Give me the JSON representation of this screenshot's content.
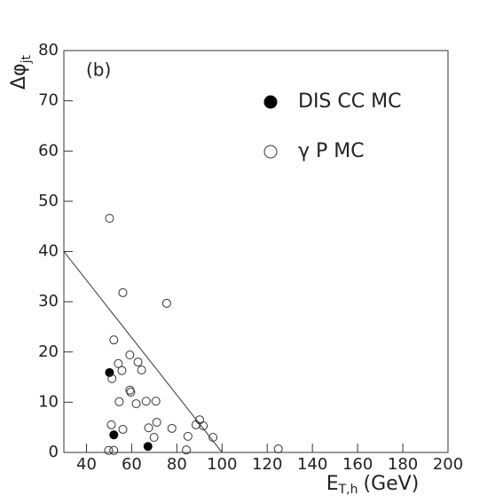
{
  "chart_data": {
    "type": "scatter",
    "panel_label": "(b)",
    "x_label": {
      "main": "E",
      "sub": "T,h",
      "unit": "(GeV)"
    },
    "y_label": {
      "main": "Δφ",
      "sub": "jt"
    },
    "xlim": [
      30,
      200
    ],
    "ylim": [
      0,
      80
    ],
    "xticks": [
      40,
      60,
      80,
      100,
      120,
      140,
      160,
      180,
      200
    ],
    "yticks": [
      0,
      10,
      20,
      30,
      40,
      50,
      60,
      70,
      80
    ],
    "series": [
      {
        "name": "DIS CC MC",
        "color": "#000000",
        "filled": true,
        "x": [
          50.2,
          52.1,
          67.2
        ],
        "values": [
          15.9,
          3.5,
          1.2
        ]
      },
      {
        "name": "γ P MC",
        "color": "#333333",
        "filled": false,
        "x": [
          50.2,
          56.1,
          75.5,
          52.1,
          54.1,
          59.2,
          55.7,
          51.3,
          62.8,
          64.4,
          59.2,
          59.6,
          54.5,
          62.0,
          66.4,
          70.7,
          71.1,
          67.5,
          69.9,
          56.1,
          51.0,
          77.8,
          84.9,
          88.5,
          90.1,
          91.7,
          96.0,
          49.8,
          52.1,
          84.2,
          124.9
        ],
        "values": [
          46.6,
          31.8,
          29.7,
          22.4,
          17.7,
          19.4,
          16.3,
          14.7,
          18.0,
          16.4,
          12.4,
          12.0,
          10.1,
          9.7,
          10.2,
          10.2,
          6.0,
          4.9,
          3.0,
          4.6,
          5.5,
          4.8,
          3.2,
          5.5,
          6.5,
          5.3,
          3.0,
          0.4,
          0.4,
          0.5,
          0.7
        ]
      }
    ],
    "lines": [
      {
        "x": [
          30,
          100
        ],
        "values": [
          40,
          0
        ]
      }
    ]
  }
}
